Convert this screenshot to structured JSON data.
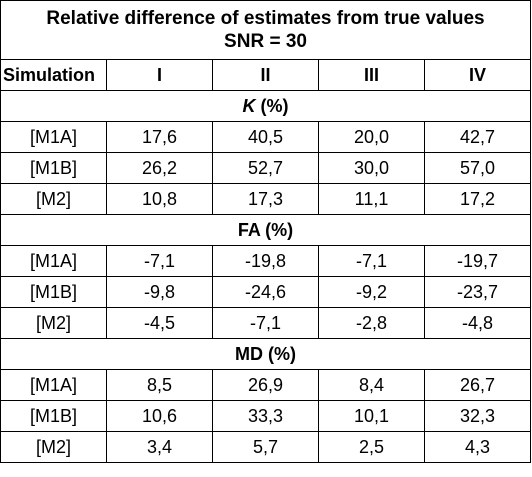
{
  "title_line1": "Relative difference of estimates from true values",
  "title_line2": "SNR = 30",
  "columns": [
    "Simulation",
    "I",
    "II",
    "III",
    "IV"
  ],
  "sections": [
    {
      "param": "K",
      "unit": " (%)",
      "rows": [
        {
          "label": "[M1A]",
          "values": [
            "17,6",
            "40,5",
            "20,0",
            "42,7"
          ]
        },
        {
          "label": "[M1B]",
          "values": [
            "26,2",
            "52,7",
            "30,0",
            "57,0"
          ]
        },
        {
          "label": "[M2]",
          "values": [
            "10,8",
            "17,3",
            "11,1",
            "17,2"
          ]
        }
      ]
    },
    {
      "param": "FA",
      "unit": " (%)",
      "rows": [
        {
          "label": "[M1A]",
          "values": [
            "-7,1",
            "-19,8",
            "-7,1",
            "-19,7"
          ]
        },
        {
          "label": "[M1B]",
          "values": [
            "-9,8",
            "-24,6",
            "-9,2",
            "-23,7"
          ]
        },
        {
          "label": "[M2]",
          "values": [
            "-4,5",
            "-7,1",
            "-2,8",
            "-4,8"
          ]
        }
      ]
    },
    {
      "param": "MD",
      "unit": " (%)",
      "rows": [
        {
          "label": "[M1A]",
          "values": [
            "8,5",
            "26,9",
            "8,4",
            "26,7"
          ]
        },
        {
          "label": "[M1B]",
          "values": [
            "10,6",
            "33,3",
            "10,1",
            "32,3"
          ]
        },
        {
          "label": "[M2]",
          "values": [
            "3,4",
            "5,7",
            "2,5",
            "4,3"
          ]
        }
      ]
    }
  ]
}
